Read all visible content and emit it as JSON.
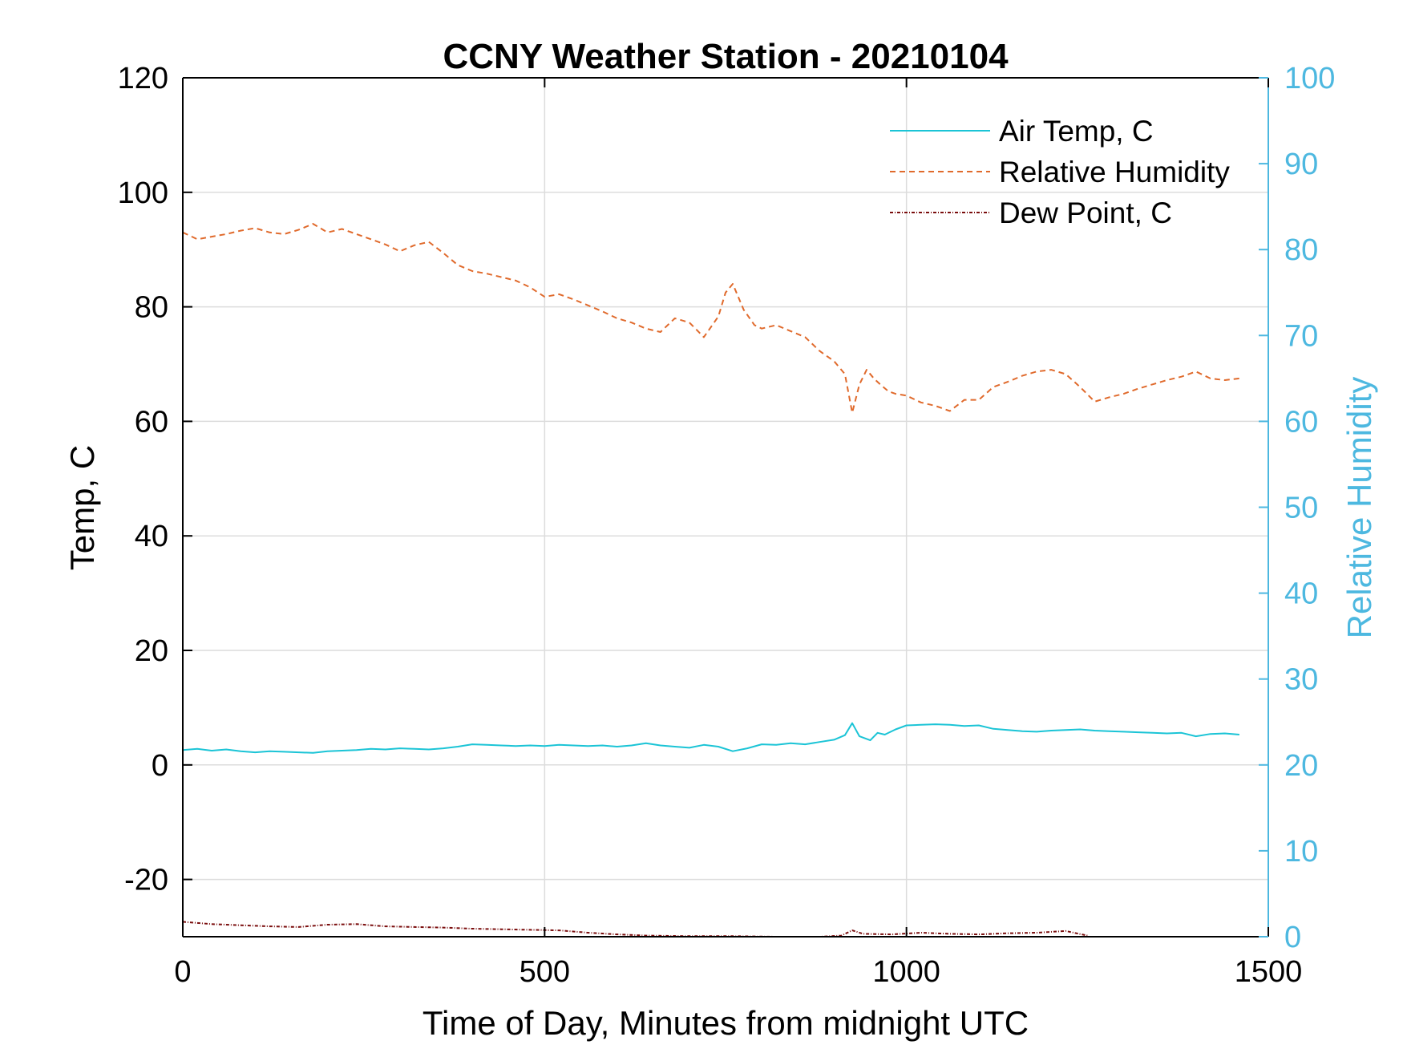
{
  "colors": {
    "air_temp": "#1bc4d6",
    "relative_humidity": "#e06a2c",
    "dew_point": "#7a0d0d",
    "right_axis": "#4db8e0",
    "grid": "#dcdcdc",
    "axis": "#000000"
  },
  "chart_data": {
    "type": "line",
    "title": "CCNY Weather Station - 20210104",
    "xlabel": "Time of Day, Minutes from midnight UTC",
    "ylabel_left": "Temp, C",
    "ylabel_right": "Relative Humidity",
    "xlim": [
      0,
      1500
    ],
    "ylim_left": [
      -30,
      120
    ],
    "ylim_right": [
      0,
      100
    ],
    "grid": true,
    "legend_position": "top-right",
    "x_ticks": [
      {
        "value": 0,
        "label": "0"
      },
      {
        "value": 500,
        "label": "500"
      },
      {
        "value": 1000,
        "label": "1000"
      },
      {
        "value": 1500,
        "label": "1500"
      }
    ],
    "y_left_ticks": [
      {
        "value": 120,
        "label": "120"
      },
      {
        "value": 100,
        "label": "100"
      },
      {
        "value": 80,
        "label": "80"
      },
      {
        "value": 60,
        "label": "60"
      },
      {
        "value": 40,
        "label": "40"
      },
      {
        "value": 20,
        "label": "20"
      },
      {
        "value": 0,
        "label": "0"
      },
      {
        "value": -20,
        "label": "-20"
      }
    ],
    "y_right_ticks": [
      {
        "value": 100,
        "label": "100"
      },
      {
        "value": 90,
        "label": "90"
      },
      {
        "value": 80,
        "label": "80"
      },
      {
        "value": 70,
        "label": "70"
      },
      {
        "value": 60,
        "label": "60"
      },
      {
        "value": 50,
        "label": "50"
      },
      {
        "value": 40,
        "label": "40"
      },
      {
        "value": 30,
        "label": "30"
      },
      {
        "value": 20,
        "label": "20"
      },
      {
        "value": 10,
        "label": "10"
      },
      {
        "value": 0,
        "label": "0"
      }
    ],
    "series": [
      {
        "name": "Air Temp, C",
        "axis": "left",
        "style": "solid",
        "color_key": "air_temp",
        "x": [
          0,
          20,
          40,
          60,
          80,
          100,
          120,
          140,
          160,
          180,
          200,
          220,
          240,
          260,
          280,
          300,
          320,
          340,
          360,
          380,
          400,
          420,
          440,
          460,
          480,
          500,
          520,
          540,
          560,
          580,
          600,
          620,
          640,
          660,
          680,
          700,
          720,
          740,
          760,
          780,
          800,
          820,
          840,
          860,
          880,
          900,
          915,
          925,
          935,
          950,
          960,
          970,
          985,
          1000,
          1020,
          1040,
          1060,
          1080,
          1100,
          1120,
          1140,
          1160,
          1180,
          1200,
          1220,
          1240,
          1260,
          1280,
          1300,
          1320,
          1340,
          1360,
          1380,
          1400,
          1420,
          1440,
          1460
        ],
        "y": [
          2.6,
          2.8,
          2.5,
          2.7,
          2.4,
          2.2,
          2.4,
          2.3,
          2.2,
          2.1,
          2.4,
          2.5,
          2.6,
          2.8,
          2.7,
          2.9,
          2.8,
          2.7,
          2.9,
          3.2,
          3.6,
          3.5,
          3.4,
          3.3,
          3.4,
          3.3,
          3.5,
          3.4,
          3.3,
          3.4,
          3.2,
          3.4,
          3.8,
          3.4,
          3.2,
          3.0,
          3.5,
          3.2,
          2.4,
          2.9,
          3.6,
          3.5,
          3.8,
          3.6,
          4.0,
          4.4,
          5.2,
          7.3,
          5.0,
          4.3,
          5.6,
          5.3,
          6.2,
          6.9,
          7.0,
          7.1,
          7.0,
          6.8,
          6.9,
          6.3,
          6.1,
          5.9,
          5.8,
          6.0,
          6.1,
          6.2,
          6.0,
          5.9,
          5.8,
          5.7,
          5.6,
          5.5,
          5.6,
          5.0,
          5.4,
          5.5,
          5.3
        ]
      },
      {
        "name": "Relative Humidity",
        "axis": "right",
        "style": "dashed",
        "color_key": "relative_humidity",
        "x": [
          0,
          20,
          40,
          60,
          80,
          100,
          120,
          140,
          160,
          180,
          200,
          220,
          240,
          260,
          280,
          300,
          320,
          340,
          360,
          380,
          400,
          420,
          440,
          460,
          480,
          500,
          520,
          540,
          560,
          580,
          600,
          620,
          640,
          660,
          680,
          700,
          720,
          740,
          750,
          760,
          775,
          790,
          800,
          820,
          840,
          860,
          880,
          900,
          915,
          925,
          935,
          945,
          955,
          965,
          975,
          985,
          1000,
          1020,
          1040,
          1060,
          1080,
          1100,
          1120,
          1140,
          1160,
          1180,
          1200,
          1220,
          1240,
          1260,
          1280,
          1300,
          1320,
          1340,
          1360,
          1380,
          1400,
          1420,
          1440,
          1460
        ],
        "y": [
          82.0,
          81.2,
          81.5,
          81.8,
          82.2,
          82.5,
          82.0,
          81.8,
          82.3,
          83.0,
          82.0,
          82.4,
          81.8,
          81.2,
          80.6,
          79.8,
          80.5,
          80.9,
          79.6,
          78.2,
          77.5,
          77.2,
          76.8,
          76.4,
          75.6,
          74.5,
          74.8,
          74.2,
          73.5,
          72.8,
          72.0,
          71.5,
          70.8,
          70.4,
          72.0,
          71.5,
          69.8,
          72.2,
          75.0,
          76.0,
          73.0,
          71.2,
          70.8,
          71.2,
          70.5,
          69.8,
          68.2,
          67.0,
          65.5,
          61.0,
          64.3,
          66.0,
          65.0,
          64.2,
          63.5,
          63.2,
          63.0,
          62.2,
          61.8,
          61.2,
          62.5,
          62.5,
          64.0,
          64.6,
          65.3,
          65.8,
          66.0,
          65.5,
          64.0,
          62.3,
          62.8,
          63.2,
          63.8,
          64.3,
          64.8,
          65.2,
          65.8,
          65.0,
          64.8,
          65.0
        ]
      },
      {
        "name": "Dew Point, C",
        "axis": "left",
        "style": "dashdot",
        "color_key": "dew_point",
        "x": [
          0,
          40,
          80,
          120,
          160,
          200,
          240,
          280,
          320,
          360,
          400,
          440,
          480,
          520,
          560,
          600,
          640,
          700,
          760,
          820,
          880,
          910,
          925,
          940,
          980,
          1020,
          1060,
          1100,
          1140,
          1180,
          1220,
          1250
        ],
        "y": [
          -27.4,
          -27.8,
          -28.0,
          -28.2,
          -28.3,
          -27.9,
          -27.8,
          -28.2,
          -28.3,
          -28.4,
          -28.6,
          -28.7,
          -28.8,
          -28.9,
          -29.3,
          -29.6,
          -29.8,
          -29.9,
          -29.9,
          -30.0,
          -30.0,
          -29.8,
          -28.9,
          -29.5,
          -29.6,
          -29.3,
          -29.5,
          -29.6,
          -29.4,
          -29.3,
          -29.0,
          -29.8
        ]
      }
    ]
  }
}
